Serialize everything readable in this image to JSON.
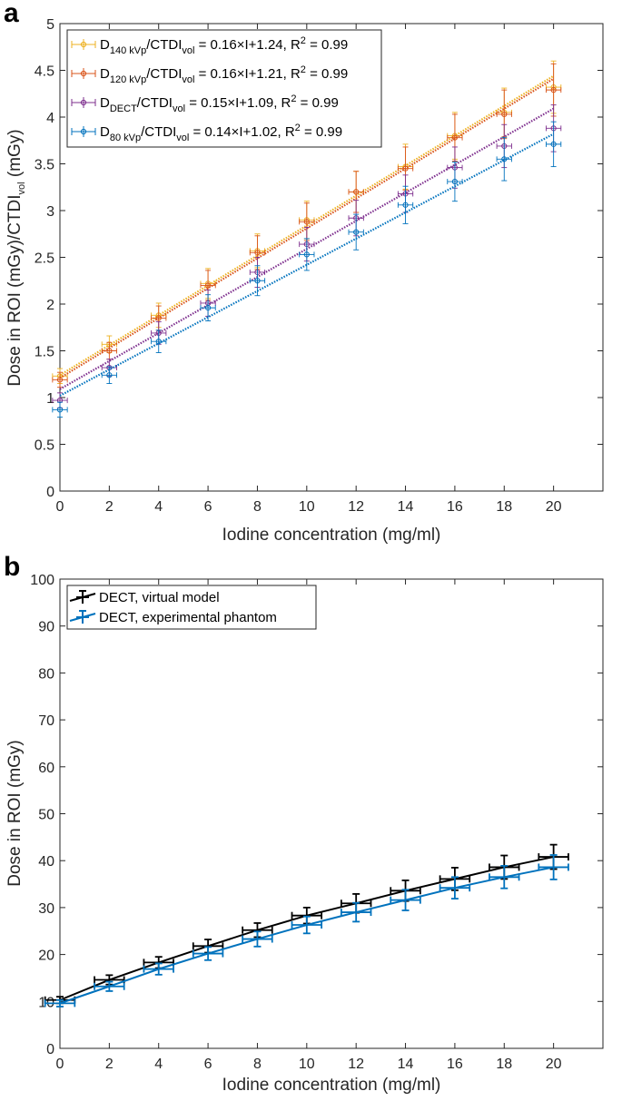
{
  "chart_data": [
    {
      "panel_label": "a",
      "type": "scatter",
      "xlabel": "Iodine concentration (mg/ml)",
      "ylabel": "Dose in ROI (mGy)/CTDI",
      "ylabel_sub": "vol",
      "ylabel_tail": " (mGy)",
      "xlim": [
        0,
        22
      ],
      "ylim": [
        0,
        5
      ],
      "xticks": [
        0,
        2,
        4,
        6,
        8,
        10,
        12,
        14,
        16,
        18,
        20
      ],
      "yticks": [
        "0",
        "0.5",
        "1",
        "1.5",
        "2",
        "2.5",
        "3",
        "3.5",
        "4",
        "4.5",
        "5"
      ],
      "x": [
        0,
        2,
        4,
        6,
        8,
        10,
        12,
        14,
        16,
        18,
        20
      ],
      "legend_position": "top-left",
      "series": [
        {
          "name": "D140 kVp/CTDIvol",
          "label_main": "D",
          "label_sub": "140 kVp",
          "label_mid": "/CTDI",
          "label_sub2": "vol",
          "label_eq": " = 0.16×I+1.24, R",
          "label_sup": "2",
          "label_tail": " = 0.99",
          "color": "#EDB120",
          "slope": 0.16,
          "intercept": 1.24,
          "values": [
            1.23,
            1.57,
            1.88,
            2.22,
            2.57,
            2.9,
            3.2,
            3.47,
            3.8,
            4.05,
            4.32
          ],
          "yerr": [
            0.08,
            0.09,
            0.13,
            0.16,
            0.18,
            0.2,
            0.22,
            0.24,
            0.25,
            0.26,
            0.28
          ],
          "xerr": 0.3
        },
        {
          "name": "D120 kVp/CTDIvol",
          "label_main": "D",
          "label_sub": "120 kVp",
          "label_mid": "/CTDI",
          "label_sub2": "vol",
          "label_eq": " = 0.16×I+1.21, R",
          "label_sup": "2",
          "label_tail": " = 0.99",
          "color": "#D95319",
          "slope": 0.16,
          "intercept": 1.21,
          "values": [
            1.19,
            1.5,
            1.85,
            2.2,
            2.55,
            2.88,
            3.2,
            3.45,
            3.78,
            4.03,
            4.29
          ],
          "yerr": [
            0.08,
            0.09,
            0.13,
            0.16,
            0.18,
            0.2,
            0.22,
            0.23,
            0.25,
            0.26,
            0.28
          ],
          "xerr": 0.3
        },
        {
          "name": "DDECT/CTDIvol",
          "label_main": "D",
          "label_sub": "DECT",
          "label_mid": "/CTDI",
          "label_sub2": "vol",
          "label_eq": " = 0.15×I+1.09, R",
          "label_sup": "2",
          "label_tail": " = 0.99",
          "color": "#7E2F8E",
          "slope": 0.15,
          "intercept": 1.09,
          "values": [
            0.97,
            1.32,
            1.69,
            2.01,
            2.34,
            2.64,
            2.92,
            3.18,
            3.46,
            3.69,
            3.88
          ],
          "yerr": [
            0.08,
            0.09,
            0.12,
            0.14,
            0.16,
            0.18,
            0.19,
            0.2,
            0.22,
            0.23,
            0.25
          ],
          "xerr": 0.3
        },
        {
          "name": "D80 kVp/CTDIvol",
          "label_main": "D",
          "label_sub": "80 kVp",
          "label_mid": "/CTDI",
          "label_sub2": "vol",
          "label_eq": " = 0.14×I+1.02, R",
          "label_sup": "2",
          "label_tail": " = 0.99",
          "color": "#0072BD",
          "slope": 0.14,
          "intercept": 1.02,
          "values": [
            0.87,
            1.24,
            1.6,
            1.96,
            2.25,
            2.53,
            2.77,
            3.06,
            3.31,
            3.55,
            3.71
          ],
          "yerr": [
            0.08,
            0.09,
            0.12,
            0.14,
            0.16,
            0.17,
            0.19,
            0.2,
            0.21,
            0.23,
            0.24
          ],
          "xerr": 0.3
        }
      ]
    },
    {
      "panel_label": "b",
      "type": "line",
      "xlabel": "Iodine concentration (mg/ml)",
      "ylabel": "Dose in ROI (mGy)",
      "xlim": [
        0,
        22
      ],
      "ylim": [
        0,
        100
      ],
      "xticks": [
        0,
        2,
        4,
        6,
        8,
        10,
        12,
        14,
        16,
        18,
        20
      ],
      "yticks": [
        "0",
        "10",
        "20",
        "30",
        "40",
        "50",
        "60",
        "70",
        "80",
        "90",
        "100"
      ],
      "x": [
        0,
        2,
        4,
        6,
        8,
        10,
        12,
        14,
        16,
        18,
        20
      ],
      "legend_position": "top-left",
      "series": [
        {
          "name": "DECT, virtual model",
          "color": "#000000",
          "values": [
            10.3,
            14.6,
            18.3,
            21.8,
            25.2,
            28.3,
            30.9,
            33.6,
            36.1,
            38.6,
            40.8
          ],
          "yerr": [
            0.7,
            1.0,
            1.2,
            1.4,
            1.5,
            1.7,
            2.0,
            2.2,
            2.4,
            2.5,
            2.6
          ],
          "xerr": 0.6
        },
        {
          "name": "DECT, experimental phantom",
          "color": "#0072BD",
          "values": [
            9.6,
            13.2,
            16.9,
            20.2,
            23.3,
            26.3,
            29.0,
            31.6,
            34.2,
            36.5,
            38.6
          ],
          "yerr": [
            0.7,
            1.0,
            1.2,
            1.4,
            1.6,
            1.8,
            2.0,
            2.2,
            2.3,
            2.4,
            2.6
          ],
          "xerr": 0.6
        }
      ]
    }
  ]
}
